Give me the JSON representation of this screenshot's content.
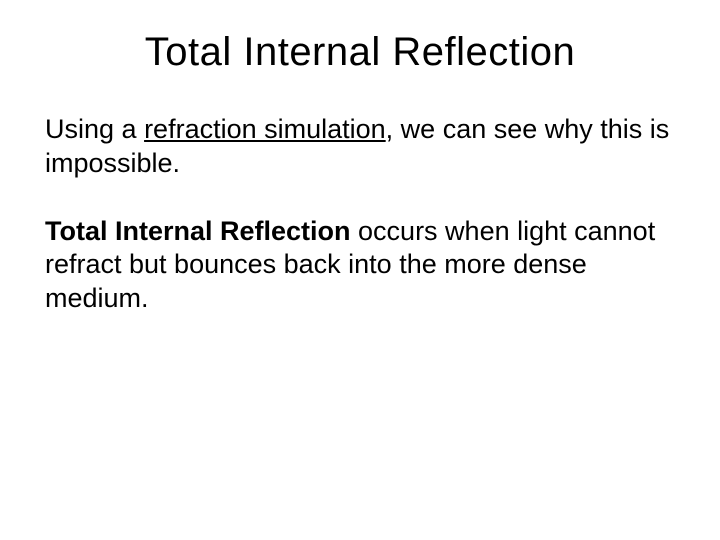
{
  "slide": {
    "title": "Total Internal Reflection",
    "paragraph1": {
      "prefix": "Using a ",
      "link": "refraction simulation",
      "suffix": ", we can see why this is impossible."
    },
    "paragraph2": {
      "bold": "Total Internal Reflection",
      "rest": " occurs when light cannot refract but bounces back into the more dense medium."
    }
  },
  "styling": {
    "background_color": "#ffffff",
    "text_color": "#000000",
    "title_fontsize": 40,
    "body_fontsize": 27,
    "font_family": "Arial"
  }
}
